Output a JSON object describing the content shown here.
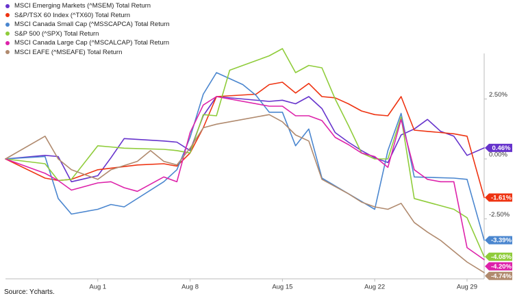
{
  "source_note": "Source: Ycharts.",
  "chart_data": {
    "type": "line",
    "title": "",
    "xlabel": "",
    "ylabel": "",
    "x_tick_labels": [
      "Aug 1",
      "Aug 8",
      "Aug 15",
      "Aug 22",
      "Aug 29"
    ],
    "x_tick_positions": [
      3,
      10,
      17,
      24,
      31
    ],
    "y_ticks": [
      2.5,
      0.0,
      -2.5
    ],
    "y_tick_labels": [
      "2.50%",
      "0.00%",
      "-2.50%"
    ],
    "ylim": [
      -5.0,
      4.4
    ],
    "xlim": [
      -4,
      32.3
    ],
    "grid": false,
    "legend_position": "top-left",
    "x": [
      -4,
      -1,
      0,
      1,
      2,
      3,
      4,
      5,
      6,
      7,
      8,
      9,
      10,
      11,
      12,
      13,
      14,
      15,
      16,
      17,
      18,
      19,
      20,
      21,
      22,
      23,
      24,
      25,
      26,
      27,
      28,
      29,
      30,
      31,
      32.3
    ],
    "series": [
      {
        "name": "MSCI Emerging Markets (^MSEM) Total Return",
        "color": "#6633cc",
        "end_label": "0.46%",
        "values": [
          0,
          0.15,
          0.1,
          -0.95,
          null,
          -0.7,
          0.05,
          0.85,
          null,
          null,
          0.75,
          0.7,
          0.35,
          1.8,
          2.6,
          null,
          null,
          null,
          2.4,
          2.45,
          2.3,
          2.6,
          2.1,
          1.1,
          0.7,
          0.35,
          0.05,
          -0.15,
          1.0,
          1.25,
          1.65,
          1.15,
          0.95,
          0.15,
          0.46
        ]
      },
      {
        "name": "S&P/TSX 60 Index (^TX60) Total Return",
        "color": "#ee3311",
        "end_label": "-1.61%",
        "values": [
          0,
          -0.8,
          -0.9,
          -0.85,
          null,
          -0.45,
          null,
          null,
          -0.25,
          null,
          -0.2,
          -0.3,
          0.25,
          1.3,
          2.6,
          null,
          null,
          2.7,
          3.1,
          3.2,
          2.75,
          3.15,
          2.6,
          2.55,
          2.3,
          2.0,
          1.85,
          1.8,
          2.6,
          1.2,
          1.15,
          1.1,
          1.05,
          0.95,
          -1.61
        ]
      },
      {
        "name": "MSCI Canada Small Cap (^MSSCAPCA) Total Return",
        "color": "#4a86cf",
        "end_label": "-3.39%",
        "values": [
          0,
          0.1,
          -1.65,
          -2.3,
          null,
          -2.1,
          -1.9,
          -2.0,
          null,
          null,
          -0.95,
          -0.45,
          0.9,
          2.7,
          3.6,
          null,
          3.1,
          2.65,
          1.95,
          1.95,
          0.55,
          1.25,
          -0.8,
          null,
          null,
          null,
          -2.1,
          0.35,
          1.9,
          -0.75,
          null,
          null,
          -0.8,
          -0.85,
          -3.39
        ]
      },
      {
        "name": "S&P 500 (^SPX) Total Return",
        "color": "#8fcc3a",
        "end_label": "-4.08%",
        "values": [
          0,
          -0.2,
          -0.9,
          -0.85,
          null,
          0.55,
          0.5,
          0.45,
          null,
          null,
          0.4,
          0.35,
          0.25,
          1.85,
          1.8,
          3.7,
          null,
          4.1,
          4.3,
          4.6,
          3.6,
          3.9,
          3.8,
          2.5,
          1.4,
          0.25,
          0.0,
          0.0,
          1.75,
          -1.65,
          null,
          null,
          -2.1,
          -2.45,
          -4.08
        ]
      },
      {
        "name": "MSCI Canada Large Cap (^MSCALCAP) Total Return",
        "color": "#dd22aa",
        "end_label": "-4.20%",
        "values": [
          0,
          -0.6,
          -0.9,
          -1.3,
          null,
          -1.0,
          -0.95,
          -1.2,
          -1.35,
          null,
          -0.75,
          -0.95,
          1.1,
          2.25,
          2.6,
          null,
          null,
          null,
          2.2,
          2.2,
          1.8,
          1.8,
          1.6,
          0.9,
          0.6,
          0.25,
          0.1,
          -0.35,
          1.65,
          -0.45,
          -0.85,
          -0.95,
          -0.95,
          -3.7,
          -4.2
        ]
      },
      {
        "name": "MSCI EAFE (^MSEAFE) Total Return",
        "color": "#b08a6e",
        "end_label": "-4.74%",
        "values": [
          0,
          0.95,
          0.0,
          -0.45,
          null,
          -0.85,
          -0.45,
          null,
          -0.1,
          0.35,
          -0.1,
          -0.25,
          0.45,
          1.3,
          1.45,
          null,
          null,
          null,
          1.85,
          1.55,
          1.0,
          0.75,
          -0.85,
          -1.15,
          -1.45,
          -1.8,
          -2.0,
          -2.1,
          -1.85,
          -2.65,
          -3.05,
          -3.4,
          -3.85,
          -4.3,
          -4.74
        ]
      }
    ]
  }
}
